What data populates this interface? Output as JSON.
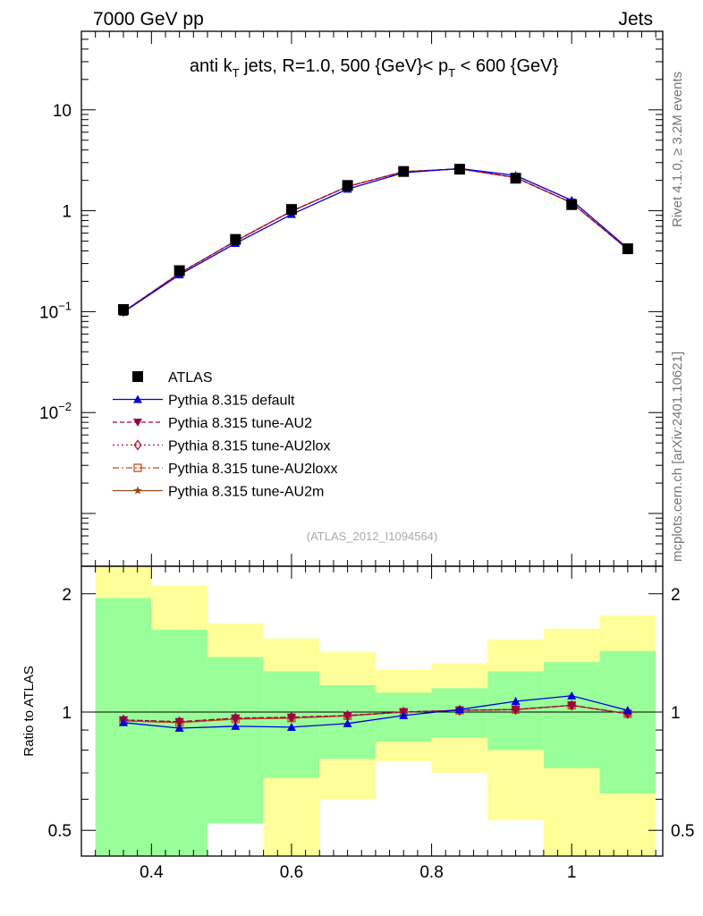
{
  "header": {
    "left": "7000 GeV pp",
    "right": "Jets"
  },
  "title": {
    "main_a": "anti k",
    "main_sub": "T",
    "main_b": " jets, R=1.0,  500 {GeV}< p",
    "main_sub2": "T",
    "main_c": " < 600 {GeV}"
  },
  "side_labels": {
    "rivet": "Rivet 4.1.0, ≥ 3.2M events",
    "mcplots": "mcplots.cern.ch [arXiv:2401.10621]"
  },
  "watermark": "(ATLAS_2012_I1094564)",
  "ratio_ylabel": "Ratio to ATLAS",
  "colors": {
    "atlas": "#000000",
    "default": "#0000dd",
    "au2": "#99004c",
    "au2lox": "#b2182b",
    "au2loxx": "#cc4c1a",
    "au2m": "#994c19",
    "band_inner": "#99ff99",
    "band_outer": "#ffff99"
  },
  "chart_data": {
    "type": "line",
    "x": [
      0.36,
      0.44,
      0.52,
      0.6,
      0.68,
      0.76,
      0.84,
      0.92,
      1.0,
      1.08
    ],
    "x_edges": [
      0.32,
      0.4,
      0.48,
      0.56,
      0.64,
      0.72,
      0.8,
      0.88,
      0.96,
      1.04,
      1.12
    ],
    "xlim": [
      0.3,
      1.13
    ],
    "x_ticks": [
      "0.4",
      "0.6",
      "0.8",
      "1"
    ],
    "main": {
      "yscale": "log",
      "ylim": [
        0.0003,
        60
      ],
      "y_ticks": [
        {
          "value": 10,
          "base": "10",
          "exp": ""
        },
        {
          "value": 1,
          "base": "1",
          "exp": ""
        },
        {
          "value": 0.1,
          "base": "10",
          "exp": "−1"
        },
        {
          "value": 0.01,
          "base": "10",
          "exp": "−2"
        }
      ],
      "series": [
        {
          "name": "ATLAS",
          "key": "atlas",
          "marker": "square",
          "dash": "",
          "values": [
            0.105,
            0.255,
            0.52,
            1.03,
            1.78,
            2.45,
            2.58,
            2.1,
            1.15,
            0.42
          ]
        },
        {
          "name": "Pythia 8.315 default",
          "key": "default",
          "marker": "triangle-up",
          "dash": "",
          "values": [
            0.099,
            0.232,
            0.475,
            0.92,
            1.64,
            2.38,
            2.62,
            2.24,
            1.27,
            0.425
          ]
        },
        {
          "name": "Pythia 8.315 tune-AU2",
          "key": "au2",
          "marker": "triangle-down",
          "dash": "5,3",
          "values": [
            0.1,
            0.24,
            0.5,
            0.99,
            1.74,
            2.44,
            2.6,
            2.13,
            1.2,
            0.415
          ]
        },
        {
          "name": "Pythia 8.315 tune-AU2lox",
          "key": "au2lox",
          "marker": "diamond-open",
          "dash": "2,3",
          "values": [
            0.1,
            0.24,
            0.5,
            0.99,
            1.74,
            2.44,
            2.6,
            2.13,
            1.2,
            0.415
          ]
        },
        {
          "name": "Pythia 8.315 tune-AU2loxx",
          "key": "au2loxx",
          "marker": "square-open",
          "dash": "7,3,2,3",
          "values": [
            0.1,
            0.24,
            0.5,
            0.99,
            1.74,
            2.44,
            2.6,
            2.13,
            1.2,
            0.415
          ]
        },
        {
          "name": "Pythia 8.315 tune-AU2m",
          "key": "au2m",
          "marker": "star",
          "dash": "",
          "values": [
            0.1,
            0.24,
            0.5,
            0.99,
            1.74,
            2.44,
            2.6,
            2.13,
            1.2,
            0.415
          ]
        }
      ]
    },
    "ratio": {
      "yscale": "log",
      "ylim": [
        0.43,
        2.35
      ],
      "y_ticks": [
        {
          "value": 2,
          "label": "2"
        },
        {
          "value": 1,
          "label": "1"
        },
        {
          "value": 0.5,
          "label": "0.5"
        }
      ],
      "band_inner": {
        "low": [
          0.3,
          0.4,
          0.52,
          0.68,
          0.76,
          0.84,
          0.86,
          0.8,
          0.72,
          0.62
        ],
        "high": [
          1.95,
          1.62,
          1.38,
          1.27,
          1.17,
          1.12,
          1.15,
          1.27,
          1.34,
          1.43
        ]
      },
      "band_outer": {
        "low": [
          0.3,
          0.35,
          0.6,
          0.3,
          0.6,
          0.75,
          0.7,
          0.53,
          0.3,
          0.3
        ],
        "high": [
          2.6,
          2.1,
          1.68,
          1.54,
          1.42,
          1.28,
          1.33,
          1.53,
          1.63,
          1.76
        ]
      },
      "series": [
        {
          "key": "default",
          "marker": "triangle-up",
          "dash": "",
          "values": [
            0.94,
            0.91,
            0.92,
            0.915,
            0.935,
            0.98,
            1.015,
            1.065,
            1.1,
            1.01
          ]
        },
        {
          "key": "au2",
          "marker": "triangle-down",
          "dash": "5,3",
          "values": [
            0.955,
            0.945,
            0.965,
            0.97,
            0.98,
            1.0,
            1.01,
            1.015,
            1.04,
            0.99
          ]
        },
        {
          "key": "au2lox",
          "marker": "diamond-open",
          "dash": "2,3",
          "values": [
            0.955,
            0.945,
            0.965,
            0.97,
            0.98,
            1.0,
            1.01,
            1.015,
            1.04,
            0.99
          ]
        },
        {
          "key": "au2loxx",
          "marker": "square-open",
          "dash": "7,3,2,3",
          "values": [
            0.95,
            0.94,
            0.96,
            0.965,
            0.978,
            1.0,
            1.01,
            1.015,
            1.04,
            0.99
          ]
        },
        {
          "key": "au2m",
          "marker": "star",
          "dash": "",
          "values": [
            0.95,
            0.94,
            0.96,
            0.965,
            0.978,
            1.0,
            1.01,
            1.015,
            1.04,
            0.99
          ]
        }
      ]
    }
  }
}
